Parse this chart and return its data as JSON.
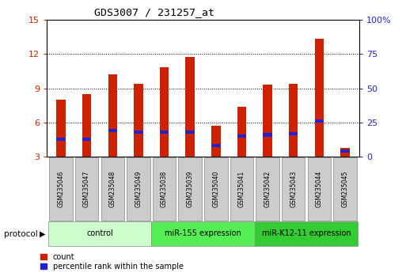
{
  "title": "GDS3007 / 231257_at",
  "samples": [
    "GSM235046",
    "GSM235047",
    "GSM235048",
    "GSM235049",
    "GSM235038",
    "GSM235039",
    "GSM235040",
    "GSM235041",
    "GSM235042",
    "GSM235043",
    "GSM235044",
    "GSM235045"
  ],
  "count_values": [
    8.0,
    8.5,
    10.2,
    9.4,
    10.8,
    11.7,
    5.7,
    7.4,
    9.3,
    9.4,
    13.3,
    3.8
  ],
  "percentile_values": [
    13,
    13,
    19,
    18,
    18,
    18,
    8,
    15,
    16,
    17,
    26,
    4
  ],
  "bar_color": "#cc2200",
  "percentile_color": "#2222cc",
  "ylim_left": [
    3,
    15
  ],
  "ylim_right": [
    0,
    100
  ],
  "yticks_left": [
    3,
    6,
    9,
    12,
    15
  ],
  "yticks_right": [
    0,
    25,
    50,
    75,
    100
  ],
  "ytick_labels_left": [
    "3",
    "6",
    "9",
    "12",
    "15"
  ],
  "ytick_labels_right": [
    "0",
    "25",
    "50",
    "75",
    "100%"
  ],
  "left_tick_color": "#cc2200",
  "right_tick_color": "#2222cc",
  "groups": [
    {
      "label": "control",
      "start": 0,
      "end": 4,
      "color": "#ccffcc"
    },
    {
      "label": "miR-155 expression",
      "start": 4,
      "end": 8,
      "color": "#55ee55"
    },
    {
      "label": "miR-K12-11 expression",
      "start": 8,
      "end": 12,
      "color": "#33cc33"
    }
  ],
  "protocol_label": "protocol",
  "legend_count": "count",
  "legend_percentile": "percentile rank within the sample",
  "bar_width": 0.35,
  "baseline": 3.0,
  "bg_color": "#ffffff",
  "plot_bg_color": "#ffffff",
  "box_color": "#cccccc"
}
